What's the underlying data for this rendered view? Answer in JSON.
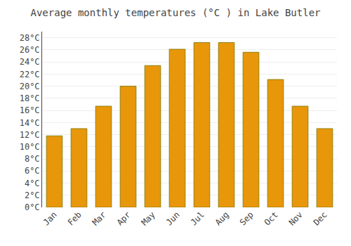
{
  "chart_data": {
    "type": "bar",
    "title": "Average monthly temperatures (°C ) in Lake Butler",
    "categories": [
      "Jan",
      "Feb",
      "Mar",
      "Apr",
      "May",
      "Jun",
      "Jul",
      "Aug",
      "Sep",
      "Oct",
      "Nov",
      "Dec"
    ],
    "values": [
      11.8,
      13.0,
      16.7,
      20.0,
      23.4,
      26.1,
      27.2,
      27.2,
      25.6,
      21.1,
      16.7,
      13.0
    ],
    "color": "#E8960A",
    "ylim": [
      0,
      29
    ],
    "yticks": [
      {
        "value": 0,
        "label": "0°C"
      },
      {
        "value": 2,
        "label": "2°C"
      },
      {
        "value": 4,
        "label": "4°C"
      },
      {
        "value": 6,
        "label": "6°C"
      },
      {
        "value": 8,
        "label": "8°C"
      },
      {
        "value": 10,
        "label": "10°C"
      },
      {
        "value": 12,
        "label": "12°C"
      },
      {
        "value": 14,
        "label": "14°C"
      },
      {
        "value": 16,
        "label": "16°C"
      },
      {
        "value": 18,
        "label": "18°C"
      },
      {
        "value": 20,
        "label": "20°C"
      },
      {
        "value": 22,
        "label": "22°C"
      },
      {
        "value": 24,
        "label": "24°C"
      },
      {
        "value": 26,
        "label": "26°C"
      },
      {
        "value": 28,
        "label": "28°C"
      }
    ],
    "grid": true
  }
}
